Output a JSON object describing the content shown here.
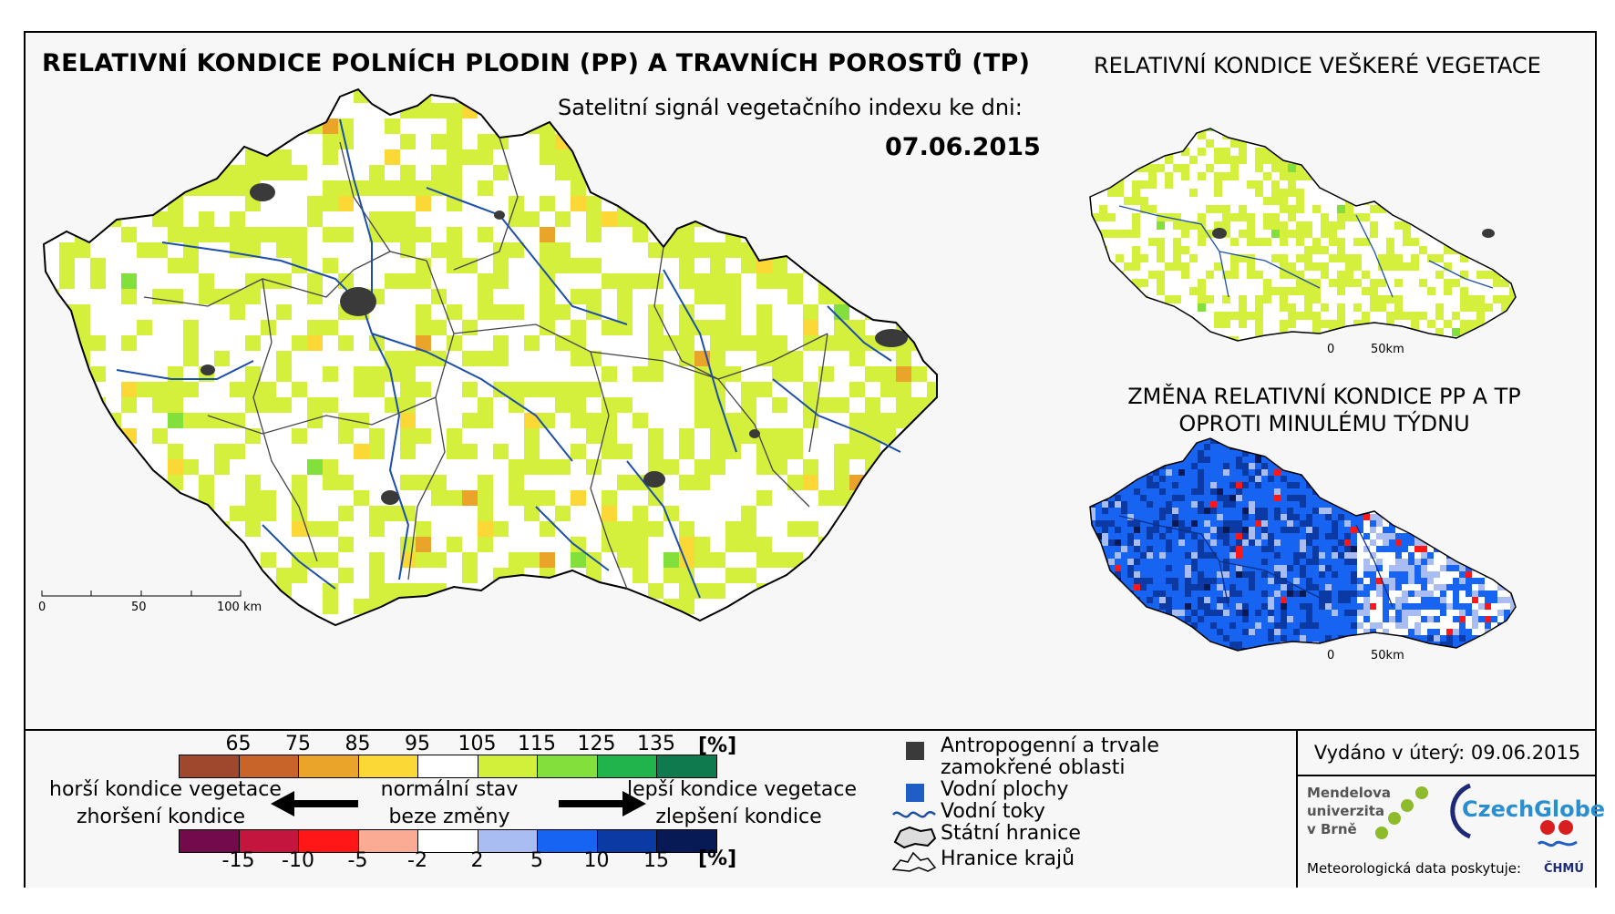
{
  "title": "RELATIVNÍ KONDICE POLNÍCH PLODIN (PP) A TRAVNÍCH POROSTŮ (TP)",
  "subtitle": "Satelitní signál vegetačního indexu ke dni:",
  "date": "07.06.2015",
  "right_top_title": "RELATIVNÍ KONDICE VEŠKERÉ VEGETACE",
  "right_bottom_title": "ZMĚNA RELATIVNÍ KONDICE PP A TP OPROTI MINULÉMU TÝDNU",
  "main_scale": {
    "labels": [
      "0",
      "50",
      "100 km"
    ]
  },
  "small_scale": {
    "labels": [
      "0",
      "50km"
    ]
  },
  "condition_legend": {
    "labels": [
      "65",
      "75",
      "85",
      "95",
      "105",
      "115",
      "125",
      "135"
    ],
    "unit": "[%]",
    "colors": [
      "#a0482d",
      "#c8632a",
      "#eba42a",
      "#fcd836",
      "#ffffff",
      "#d2f03a",
      "#83df3c",
      "#21b34c",
      "#0e7a4d"
    ]
  },
  "change_legend": {
    "labels": [
      "-15",
      "-10",
      "-5",
      "-2",
      "2",
      "5",
      "10",
      "15"
    ],
    "unit": "[%]",
    "colors": [
      "#730a4b",
      "#c4153f",
      "#ff1717",
      "#fbab93",
      "#ffffff",
      "#a9bdf3",
      "#1763f2",
      "#0b3aa4",
      "#081a56"
    ]
  },
  "captions": {
    "worse_line1": "horší kondice vegetace",
    "worse_line2": "zhoršení kondice",
    "normal_line1": "normální stav",
    "normal_line2": "beze změny",
    "better_line1": "lepší kondice vegetace",
    "better_line2": "zlepšení kondice"
  },
  "map_legend": {
    "anthropogenic_line1": "Antropogenní a trvale",
    "anthropogenic_line2": "zamokřené oblasti",
    "water_bodies": "Vodní plochy",
    "rivers": "Vodní toky",
    "state_border": "Státní hranice",
    "region_border": "Hranice krajů"
  },
  "issued": "Vydáno v úterý: 09.06.2015",
  "logos": {
    "mendel_line1": "Mendelova",
    "mendel_line2": "univerzita",
    "mendel_line3": "v Brně",
    "czechglobe": "CzechGlobe",
    "chmu": "ČHMÚ"
  },
  "meteo_credit": "Meteorologická data poskytuje:",
  "colors": {
    "anthropogenic": "#3a3a3a",
    "water": "#1f5fc5",
    "river": "#1d4fa8",
    "border": "#000000"
  }
}
